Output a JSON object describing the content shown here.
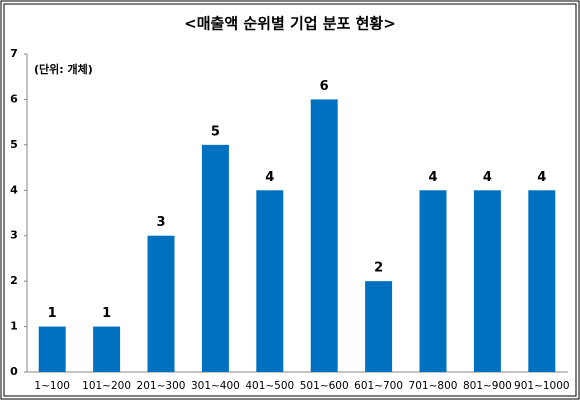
{
  "chart_data": {
    "type": "bar",
    "title": "<매출액 순위별 기업 분포 현황>",
    "annotation": "(단위: 개체)",
    "categories": [
      "1~100",
      "101~200",
      "201~300",
      "301~400",
      "401~500",
      "501~600",
      "601~700",
      "701~800",
      "801~900",
      "901~1000"
    ],
    "values": [
      1,
      1,
      3,
      5,
      4,
      6,
      2,
      4,
      4,
      4
    ],
    "color": "#0070c0",
    "ylim": [
      0,
      7
    ],
    "yticks": [
      0,
      1,
      2,
      3,
      4,
      5,
      6,
      7
    ],
    "grid": false
  }
}
